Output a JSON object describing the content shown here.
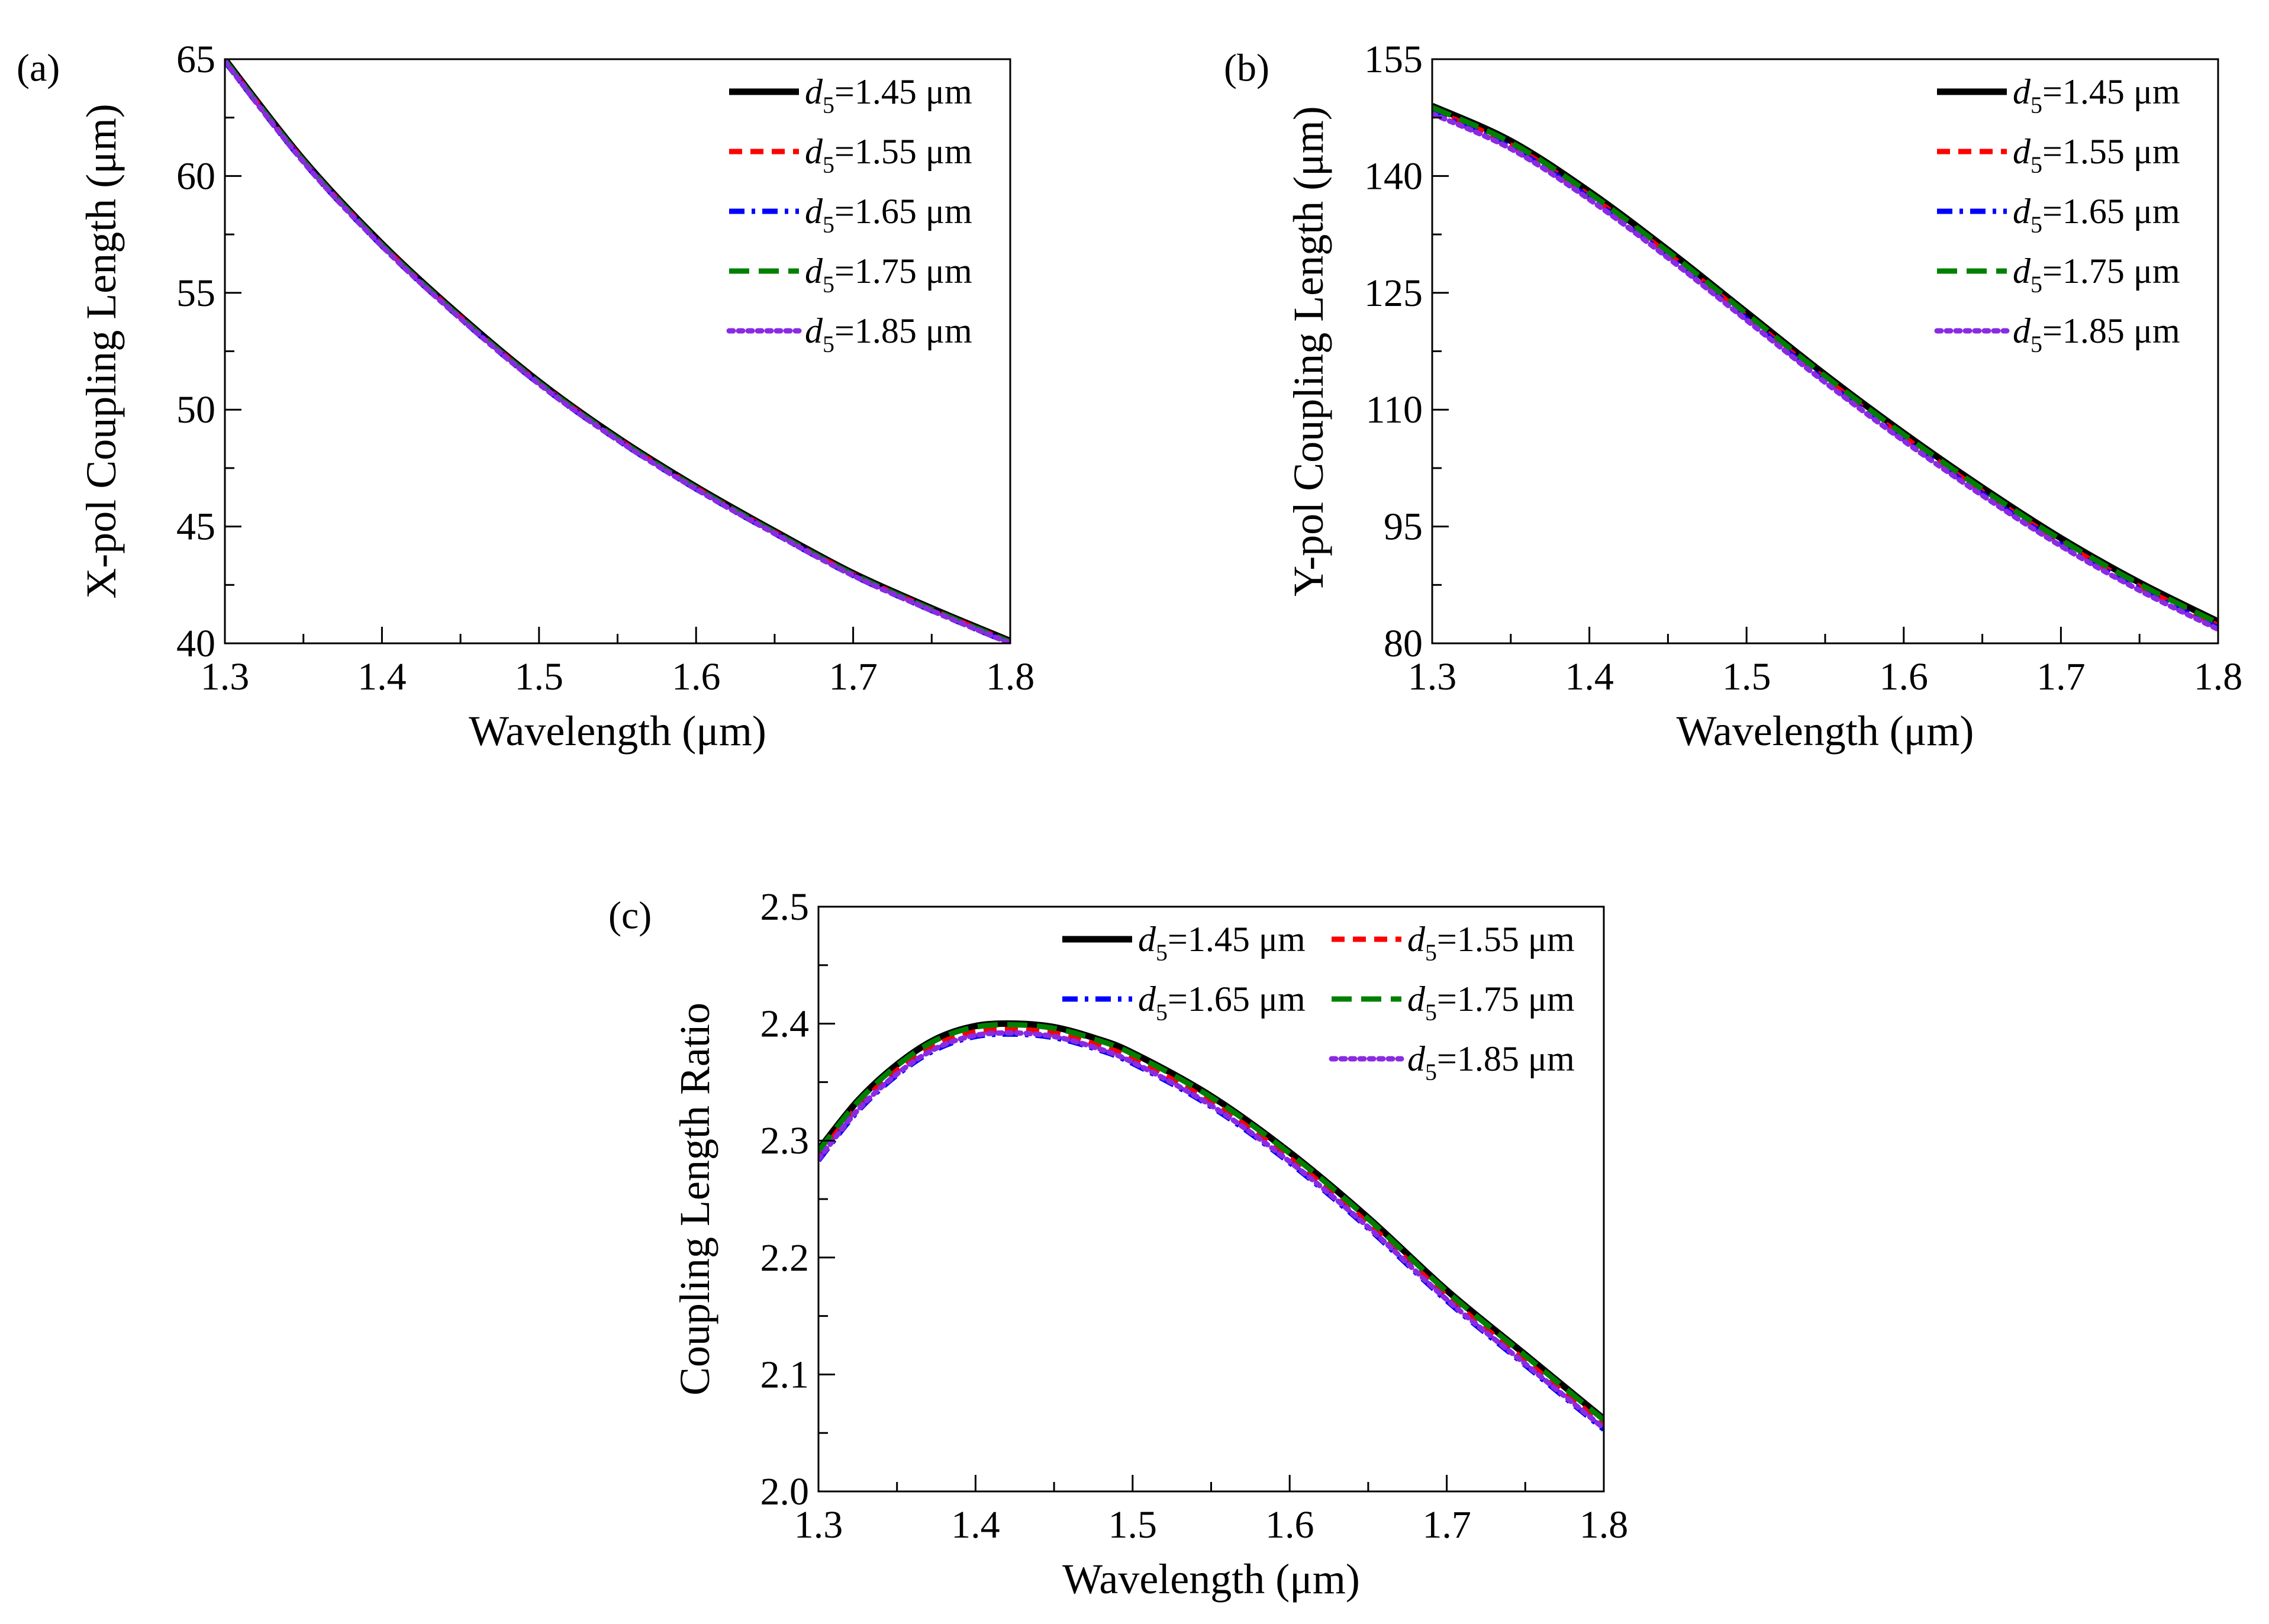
{
  "chart_data": [
    {
      "panel_label": "(a)",
      "type": "line",
      "xlabel": "Wavelength (μm)",
      "ylabel": "X-pol Coupling Length (μm)",
      "xlim": [
        1.3,
        1.8
      ],
      "ylim": [
        40,
        65
      ],
      "xticks": [
        1.3,
        1.4,
        1.5,
        1.6,
        1.7,
        1.8
      ],
      "yticks": [
        40,
        45,
        50,
        55,
        60,
        65
      ],
      "x": [
        1.3,
        1.35,
        1.4,
        1.45,
        1.5,
        1.55,
        1.6,
        1.65,
        1.7,
        1.75,
        1.8
      ],
      "legend_position": "top-right",
      "legend_columns": 1,
      "series": [
        {
          "name": "d5=1.45 μm",
          "legend_var": "d",
          "legend_sub": "5",
          "legend_rest": "=1.45 μm",
          "color": "#000000",
          "dash": "solid",
          "values": [
            65.0,
            60.7,
            57.1,
            54.0,
            51.2,
            48.8,
            46.7,
            44.8,
            43.0,
            41.5,
            40.1
          ]
        },
        {
          "name": "d5=1.55 μm",
          "legend_var": "d",
          "legend_sub": "5",
          "legend_rest": "=1.55 μm",
          "color": "#ff0000",
          "dash": "dash",
          "values": [
            64.95,
            60.65,
            57.05,
            53.95,
            51.15,
            48.75,
            46.65,
            44.75,
            42.95,
            41.45,
            40.05
          ]
        },
        {
          "name": "d5=1.65 μm",
          "legend_var": "d",
          "legend_sub": "5",
          "legend_rest": "=1.65 μm",
          "color": "#0000ff",
          "dash": "dashdot",
          "values": [
            64.9,
            60.6,
            57.0,
            53.9,
            51.1,
            48.7,
            46.6,
            44.7,
            42.9,
            41.4,
            40.0
          ]
        },
        {
          "name": "d5=1.75 μm",
          "legend_var": "d",
          "legend_sub": "5",
          "legend_rest": "=1.75 μm",
          "color": "#008000",
          "dash": "longdash",
          "values": [
            64.95,
            60.65,
            57.05,
            53.95,
            51.15,
            48.75,
            46.65,
            44.75,
            42.95,
            41.45,
            40.05
          ]
        },
        {
          "name": "d5=1.85 μm",
          "legend_var": "d",
          "legend_sub": "5",
          "legend_rest": "=1.85 μm",
          "color": "#8a2be2",
          "dash": "dot",
          "values": [
            64.9,
            60.6,
            57.0,
            53.9,
            51.1,
            48.7,
            46.6,
            44.7,
            42.9,
            41.4,
            40.0
          ]
        }
      ]
    },
    {
      "panel_label": "(b)",
      "type": "line",
      "xlabel": "Wavelength (μm)",
      "ylabel": "Y-pol Coupling Length (μm)",
      "xlim": [
        1.3,
        1.8
      ],
      "ylim": [
        80,
        155
      ],
      "xticks": [
        1.3,
        1.4,
        1.5,
        1.6,
        1.7,
        1.8
      ],
      "yticks": [
        80,
        95,
        110,
        125,
        140,
        155
      ],
      "x": [
        1.3,
        1.35,
        1.4,
        1.45,
        1.5,
        1.55,
        1.6,
        1.65,
        1.7,
        1.75,
        1.8
      ],
      "legend_position": "top-right",
      "legend_columns": 1,
      "series": [
        {
          "name": "d5=1.45 μm",
          "legend_var": "d",
          "legend_sub": "5",
          "legend_rest": "=1.45 μm",
          "color": "#000000",
          "dash": "solid",
          "values": [
            149.0,
            144.5,
            138.0,
            130.5,
            122.5,
            114.5,
            107.0,
            100.0,
            93.5,
            87.8,
            82.8
          ]
        },
        {
          "name": "d5=1.55 μm",
          "legend_var": "d",
          "legend_sub": "5",
          "legend_rest": "=1.55 μm",
          "color": "#ff0000",
          "dash": "dash",
          "values": [
            148.5,
            144.0,
            137.5,
            130.0,
            122.0,
            114.0,
            106.5,
            99.5,
            93.0,
            87.3,
            82.3
          ]
        },
        {
          "name": "d5=1.65 μm",
          "legend_var": "d",
          "legend_sub": "5",
          "legend_rest": "=1.65 μm",
          "color": "#0000ff",
          "dash": "dashdot",
          "values": [
            148.2,
            143.7,
            137.2,
            129.7,
            121.7,
            113.7,
            106.2,
            99.2,
            92.7,
            87.0,
            82.0
          ]
        },
        {
          "name": "d5=1.75 μm",
          "legend_var": "d",
          "legend_sub": "5",
          "legend_rest": "=1.75 μm",
          "color": "#008000",
          "dash": "longdash",
          "values": [
            148.8,
            144.3,
            137.8,
            130.3,
            122.3,
            114.3,
            106.8,
            99.8,
            93.3,
            87.6,
            82.6
          ]
        },
        {
          "name": "d5=1.85 μm",
          "legend_var": "d",
          "legend_sub": "5",
          "legend_rest": "=1.85 μm",
          "color": "#8a2be2",
          "dash": "dot",
          "values": [
            148.0,
            143.5,
            137.0,
            129.5,
            121.5,
            113.5,
            106.0,
            99.0,
            92.5,
            86.8,
            81.8
          ]
        }
      ]
    },
    {
      "panel_label": "(c)",
      "type": "line",
      "xlabel": "Wavelength (μm)",
      "ylabel": "Coupling Length Ratio",
      "xlim": [
        1.3,
        1.8
      ],
      "ylim": [
        2.0,
        2.5
      ],
      "xticks": [
        1.3,
        1.4,
        1.5,
        1.6,
        1.7,
        1.8
      ],
      "yticks": [
        2.0,
        2.1,
        2.2,
        2.3,
        2.4,
        2.5
      ],
      "ytick_labels": [
        "2.0",
        "2.1",
        "2.2",
        "2.3",
        "2.4",
        "2.5"
      ],
      "x": [
        1.3,
        1.325,
        1.35,
        1.375,
        1.4,
        1.425,
        1.45,
        1.475,
        1.5,
        1.55,
        1.6,
        1.65,
        1.7,
        1.75,
        1.8
      ],
      "legend_position": "top-right",
      "legend_columns": 2,
      "series": [
        {
          "name": "d5=1.45 μm",
          "legend_var": "d",
          "legend_sub": "5",
          "legend_rest": "=1.45 μm",
          "color": "#000000",
          "dash": "solid",
          "values": [
            2.292,
            2.334,
            2.365,
            2.387,
            2.398,
            2.4,
            2.397,
            2.388,
            2.375,
            2.338,
            2.29,
            2.234,
            2.172,
            2.117,
            2.062
          ]
        },
        {
          "name": "d5=1.55 μm",
          "legend_var": "d",
          "legend_sub": "5",
          "legend_rest": "=1.55 μm",
          "color": "#ff0000",
          "dash": "dash",
          "values": [
            2.287,
            2.329,
            2.36,
            2.382,
            2.393,
            2.395,
            2.392,
            2.383,
            2.37,
            2.333,
            2.285,
            2.229,
            2.167,
            2.112,
            2.057
          ]
        },
        {
          "name": "d5=1.65 μm",
          "legend_var": "d",
          "legend_sub": "5",
          "legend_rest": "=1.65 μm",
          "color": "#0000ff",
          "dash": "dashdot",
          "values": [
            2.283,
            2.325,
            2.356,
            2.378,
            2.389,
            2.391,
            2.388,
            2.379,
            2.366,
            2.329,
            2.281,
            2.225,
            2.163,
            2.108,
            2.053
          ]
        },
        {
          "name": "d5=1.75 μm",
          "legend_var": "d",
          "legend_sub": "5",
          "legend_rest": "=1.75 μm",
          "color": "#008000",
          "dash": "longdash",
          "values": [
            2.291,
            2.333,
            2.364,
            2.386,
            2.397,
            2.399,
            2.396,
            2.387,
            2.374,
            2.337,
            2.289,
            2.233,
            2.171,
            2.116,
            2.061
          ]
        },
        {
          "name": "d5=1.85 μm",
          "legend_var": "d",
          "legend_sub": "5",
          "legend_rest": "=1.85 μm",
          "color": "#8a2be2",
          "dash": "dot",
          "values": [
            2.284,
            2.326,
            2.357,
            2.379,
            2.39,
            2.392,
            2.389,
            2.38,
            2.367,
            2.33,
            2.282,
            2.226,
            2.164,
            2.109,
            2.054
          ]
        }
      ]
    }
  ]
}
